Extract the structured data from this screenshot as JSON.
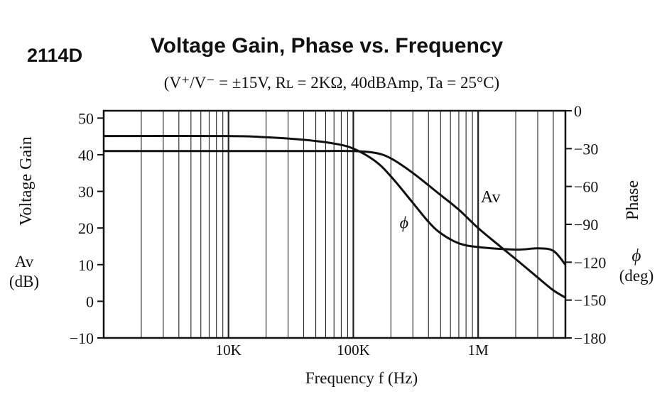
{
  "part_number": "2114D",
  "chart_data": {
    "type": "line",
    "title": "Voltage Gain, Phase vs. Frequency",
    "subtitle": "(V⁺/V⁻ = ±15V, Rʟ = 2KΩ, 40dBAmp, Ta = 25°C)",
    "xlabel": "Frequency f (Hz)",
    "xscale": "log",
    "xlim": [
      1000,
      5000000
    ],
    "x_tick_labels": [
      {
        "value": 10000,
        "label": "10K"
      },
      {
        "value": 100000,
        "label": "100K"
      },
      {
        "value": 1000000,
        "label": "1M"
      }
    ],
    "y_left": {
      "label_lines": [
        "Voltage Gain",
        "Av",
        "(dB)"
      ],
      "ylim": [
        -10,
        52
      ],
      "ticks": [
        50,
        40,
        30,
        20,
        10,
        0,
        -10
      ],
      "tick_labels": [
        "50",
        "40",
        "30",
        "20",
        "10",
        "0",
        "−10"
      ]
    },
    "y_right": {
      "label_lines": [
        "Phase",
        "ϕ",
        "(deg)"
      ],
      "ylim": [
        -180,
        0
      ],
      "ticks": [
        0,
        -30,
        -60,
        -90,
        -120,
        -150,
        -180
      ],
      "tick_labels": [
        "0",
        "−30",
        "−60",
        "−90",
        "−120",
        "−150",
        "−180"
      ]
    },
    "grid": "log-decades",
    "series": [
      {
        "name": "Av",
        "axis": "left",
        "x": [
          1000,
          10000,
          50000,
          100000,
          150000,
          200000,
          300000,
          500000,
          700000,
          1000000,
          1500000,
          2000000,
          3000000,
          4000000,
          5000000
        ],
        "y": [
          41,
          41,
          41,
          41,
          40.5,
          39,
          35,
          29,
          25,
          20,
          15,
          11.5,
          6.5,
          3,
          1
        ]
      },
      {
        "name": "ϕ",
        "axis": "right",
        "x": [
          1000,
          10000,
          20000,
          40000,
          70000,
          100000,
          150000,
          200000,
          300000,
          400000,
          500000,
          700000,
          1000000,
          2000000,
          3000000,
          4000000,
          5000000
        ],
        "y": [
          -20,
          -20,
          -21,
          -23,
          -26,
          -30,
          -40,
          -52,
          -73,
          -88,
          -97,
          -105,
          -108,
          -110,
          -109,
          -111,
          -122
        ]
      }
    ],
    "annotations": [
      {
        "text": "Av",
        "series": "Av",
        "x": 1050000,
        "y": 27
      },
      {
        "text": "ϕ",
        "series": "ϕ",
        "x": 235000,
        "y": -93
      }
    ]
  }
}
